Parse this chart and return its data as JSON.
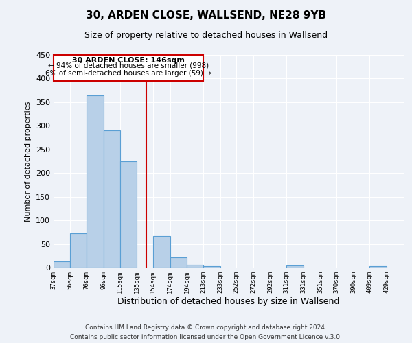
{
  "title": "30, ARDEN CLOSE, WALLSEND, NE28 9YB",
  "subtitle": "Size of property relative to detached houses in Wallsend",
  "xlabel": "Distribution of detached houses by size in Wallsend",
  "ylabel": "Number of detached properties",
  "bin_labels": [
    "37sqm",
    "56sqm",
    "76sqm",
    "96sqm",
    "115sqm",
    "135sqm",
    "154sqm",
    "174sqm",
    "194sqm",
    "213sqm",
    "233sqm",
    "252sqm",
    "272sqm",
    "292sqm",
    "311sqm",
    "331sqm",
    "351sqm",
    "370sqm",
    "390sqm",
    "409sqm",
    "429sqm"
  ],
  "bin_edges": [
    37,
    56,
    76,
    96,
    115,
    135,
    154,
    174,
    194,
    213,
    233,
    252,
    272,
    292,
    311,
    331,
    351,
    370,
    390,
    409,
    429,
    449
  ],
  "counts": [
    13,
    72,
    365,
    290,
    225,
    0,
    67,
    22,
    6,
    3,
    0,
    0,
    0,
    0,
    5,
    0,
    0,
    0,
    0,
    3,
    0
  ],
  "bar_color": "#b8d0e8",
  "bar_edge_color": "#5a9fd4",
  "property_line_x": 146,
  "property_line_color": "#cc0000",
  "annotation_title": "30 ARDEN CLOSE: 146sqm",
  "annotation_line1": "← 94% of detached houses are smaller (998)",
  "annotation_line2": "6% of semi-detached houses are larger (59) →",
  "annotation_box_color": "#cc0000",
  "ylim": [
    0,
    450
  ],
  "xlim": [
    37,
    449
  ],
  "yticks": [
    0,
    50,
    100,
    150,
    200,
    250,
    300,
    350,
    400,
    450
  ],
  "footer1": "Contains HM Land Registry data © Crown copyright and database right 2024.",
  "footer2": "Contains public sector information licensed under the Open Government Licence v.3.0.",
  "background_color": "#eef2f8",
  "grid_color": "#ffffff"
}
